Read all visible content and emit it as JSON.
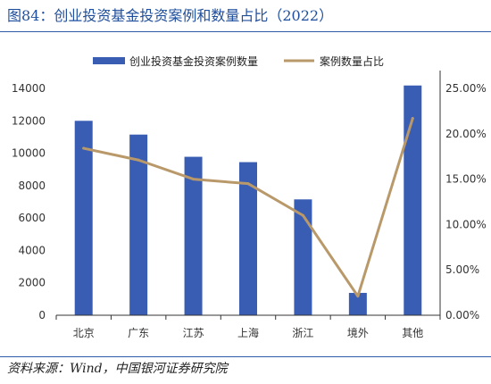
{
  "figure_title": "图84：创业投资基金投资案例和数量占比（2022）",
  "source": "资料来源：Wind，中国银河证券研究院",
  "colors": {
    "bar": "#3a5db4",
    "line": "#b9996a",
    "rule": "#2e5aa8",
    "title": "#1f4e9c"
  },
  "chart_data": {
    "type": "bar",
    "title": "",
    "xlabel": "",
    "ylabel": "",
    "y2label": "",
    "categories": [
      "北京",
      "广东",
      "江苏",
      "上海",
      "浙江",
      "境外",
      "其他"
    ],
    "ylim": [
      0,
      14000
    ],
    "yticks": [
      "0",
      "2000",
      "4000",
      "6000",
      "8000",
      "10000",
      "12000",
      "14000"
    ],
    "y2lim": [
      0,
      0.25
    ],
    "y2ticks": [
      "0.00%",
      "5.00%",
      "10.00%",
      "15.00%",
      "20.00%",
      "25.00%"
    ],
    "grid": false,
    "legend_position": "top",
    "series": [
      {
        "name": "创业投资基金投资案例数量",
        "type": "bar",
        "axis": "left",
        "values": [
          12000,
          11150,
          9780,
          9450,
          7150,
          1380,
          14180
        ]
      },
      {
        "name": "案例数量占比",
        "type": "line",
        "axis": "right",
        "values": [
          0.184,
          0.171,
          0.15,
          0.145,
          0.11,
          0.021,
          0.217
        ]
      }
    ]
  }
}
